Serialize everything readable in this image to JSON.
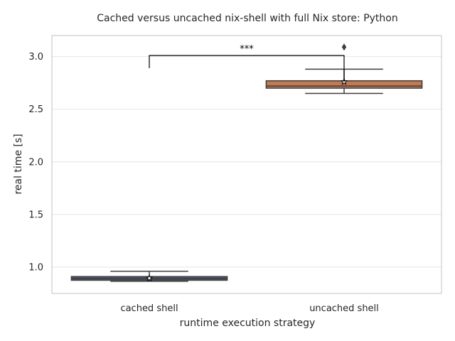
{
  "chart_data": {
    "type": "box",
    "title": "Cached versus uncached nix-shell with full Nix store: Python",
    "xlabel": "runtime execution strategy",
    "ylabel": "real time [s]",
    "ylim": [
      0.75,
      3.2
    ],
    "yticks": [
      1.0,
      1.5,
      2.0,
      2.5,
      3.0
    ],
    "ytick_labels": [
      "1.0",
      "1.5",
      "2.0",
      "2.5",
      "3.0"
    ],
    "grid": "horizontal",
    "categories": [
      "cached shell",
      "uncached shell"
    ],
    "series": [
      {
        "category": "cached shell",
        "whisker_low": 0.865,
        "q1": 0.875,
        "median": 0.89,
        "q3": 0.91,
        "whisker_high": 0.96,
        "mean": 0.895,
        "outliers": [],
        "color": "#4c5673"
      },
      {
        "category": "uncached shell",
        "whisker_low": 2.65,
        "q1": 2.7,
        "median": 2.72,
        "q3": 2.77,
        "whisker_high": 2.88,
        "mean": 2.76,
        "outliers": [
          3.09
        ],
        "color": "#c27a52"
      }
    ],
    "significance": {
      "label": "***",
      "bar_y": 3.01,
      "left_end": 2.89,
      "right_end": 2.76
    }
  }
}
